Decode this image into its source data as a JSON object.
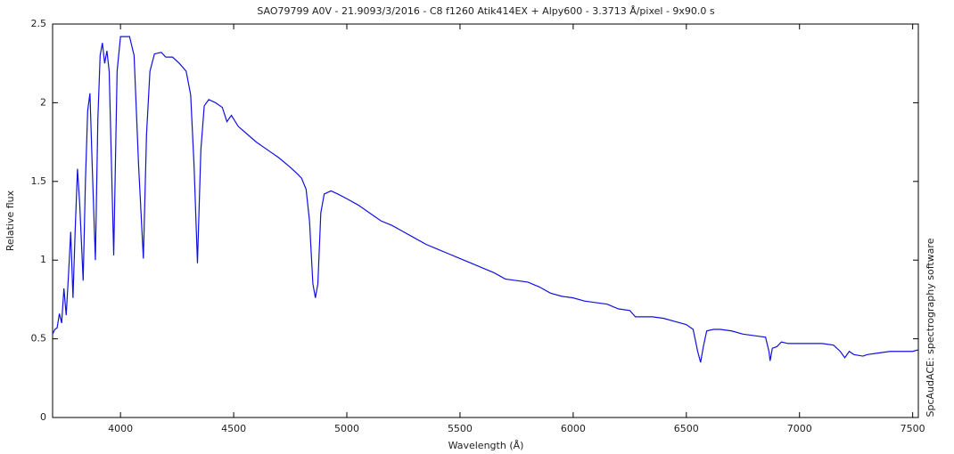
{
  "chart_data": {
    "type": "line",
    "title": "SAO79799  A0V - 21.9093/3/2016 - C8  f1260  Atik414EX + Alpy600 - 3.3713 Å/pixel - 9x90.0 s",
    "x_label": "Wavelength (Å)",
    "y_label": "Relative flux",
    "side_label": "SpcAudACE: spectrography software",
    "xlim": [
      3700,
      7525
    ],
    "ylim": [
      0,
      2.5
    ],
    "xticks": [
      4000,
      4500,
      5000,
      5500,
      6000,
      6500,
      7000,
      7500
    ],
    "yticks": [
      0,
      0.5,
      1,
      1.5,
      2,
      2.5
    ],
    "x": [
      3700,
      3710,
      3720,
      3730,
      3740,
      3750,
      3760,
      3770,
      3780,
      3790,
      3800,
      3810,
      3820,
      3835,
      3845,
      3855,
      3865,
      3875,
      3889,
      3900,
      3910,
      3920,
      3930,
      3940,
      3950,
      3970,
      3985,
      4000,
      4020,
      4040,
      4060,
      4080,
      4101,
      4115,
      4130,
      4150,
      4180,
      4200,
      4230,
      4260,
      4290,
      4310,
      4325,
      4340,
      4355,
      4370,
      4390,
      4420,
      4450,
      4470,
      4490,
      4520,
      4560,
      4600,
      4650,
      4700,
      4750,
      4780,
      4800,
      4820,
      4835,
      4850,
      4861,
      4872,
      4885,
      4900,
      4930,
      4960,
      5000,
      5050,
      5100,
      5150,
      5200,
      5250,
      5300,
      5350,
      5400,
      5450,
      5500,
      5550,
      5600,
      5650,
      5700,
      5750,
      5800,
      5850,
      5900,
      5950,
      6000,
      6050,
      6100,
      6150,
      6200,
      6250,
      6275,
      6300,
      6350,
      6400,
      6450,
      6500,
      6530,
      6550,
      6563,
      6575,
      6590,
      6620,
      6650,
      6700,
      6750,
      6800,
      6850,
      6865,
      6870,
      6880,
      6900,
      6920,
      6950,
      7000,
      7050,
      7100,
      7150,
      7180,
      7200,
      7220,
      7240,
      7280,
      7300,
      7350,
      7400,
      7450,
      7500,
      7525
    ],
    "series": [
      {
        "name": "flux",
        "color": "#1010e0",
        "values": [
          0.53,
          0.56,
          0.57,
          0.66,
          0.6,
          0.82,
          0.65,
          0.9,
          1.18,
          0.76,
          1.2,
          1.58,
          1.35,
          0.87,
          1.5,
          1.95,
          2.06,
          1.6,
          1.0,
          1.9,
          2.3,
          2.38,
          2.25,
          2.33,
          2.2,
          1.03,
          2.2,
          2.42,
          2.42,
          2.42,
          2.3,
          1.6,
          1.01,
          1.8,
          2.2,
          2.31,
          2.32,
          2.29,
          2.29,
          2.25,
          2.2,
          2.05,
          1.6,
          0.98,
          1.7,
          1.98,
          2.02,
          2.0,
          1.97,
          1.88,
          1.92,
          1.85,
          1.8,
          1.75,
          1.7,
          1.65,
          1.59,
          1.55,
          1.52,
          1.45,
          1.25,
          0.85,
          0.76,
          0.85,
          1.3,
          1.42,
          1.44,
          1.42,
          1.39,
          1.35,
          1.3,
          1.25,
          1.22,
          1.18,
          1.14,
          1.1,
          1.07,
          1.04,
          1.01,
          0.98,
          0.95,
          0.92,
          0.88,
          0.87,
          0.86,
          0.83,
          0.79,
          0.77,
          0.76,
          0.74,
          0.73,
          0.72,
          0.69,
          0.68,
          0.64,
          0.64,
          0.64,
          0.63,
          0.61,
          0.59,
          0.56,
          0.42,
          0.35,
          0.45,
          0.55,
          0.56,
          0.56,
          0.55,
          0.53,
          0.52,
          0.51,
          0.42,
          0.36,
          0.44,
          0.45,
          0.48,
          0.47,
          0.47,
          0.47,
          0.47,
          0.46,
          0.42,
          0.38,
          0.42,
          0.4,
          0.39,
          0.4,
          0.41,
          0.42,
          0.42,
          0.42,
          0.43
        ]
      }
    ]
  }
}
